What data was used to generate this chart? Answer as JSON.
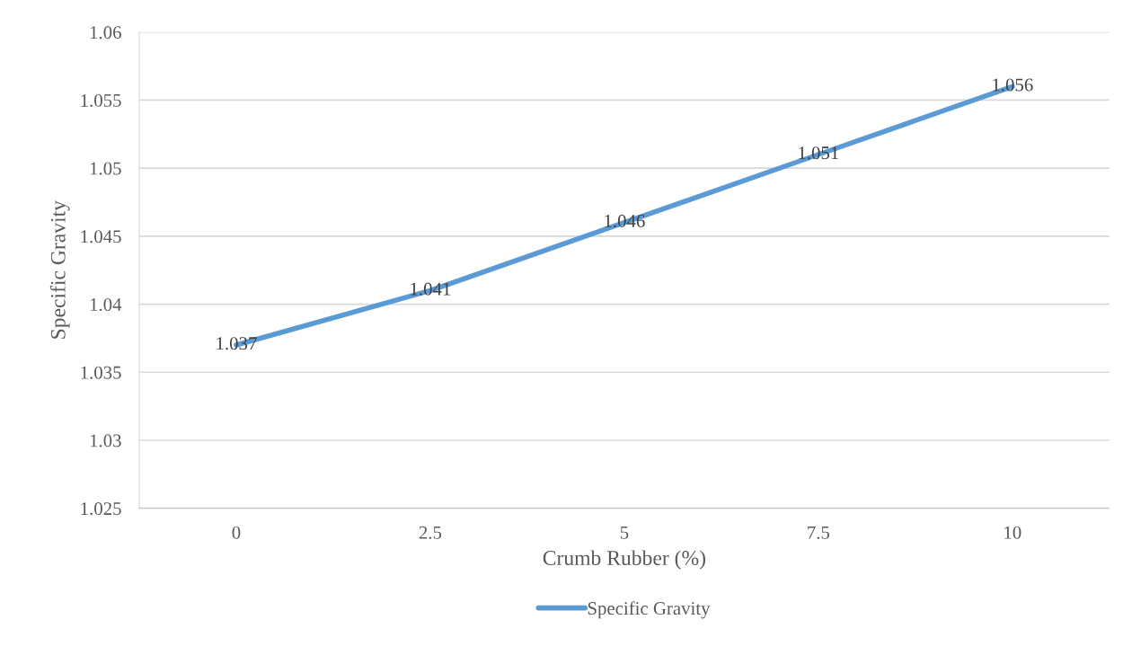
{
  "chart_data": {
    "type": "line",
    "xlabel": "Crumb Rubber (%)",
    "ylabel": "Specific Gravity",
    "categories": [
      "0",
      "2.5",
      "5",
      "7.5",
      "10"
    ],
    "series": [
      {
        "name": "Specific Gravity",
        "color": "#5b9bd5",
        "values": [
          1.037,
          1.041,
          1.046,
          1.051,
          1.056
        ]
      }
    ],
    "ylim": [
      1.025,
      1.06
    ],
    "yticks": [
      1.025,
      1.03,
      1.035,
      1.04,
      1.045,
      1.05,
      1.055,
      1.06
    ],
    "grid": "y",
    "legend": "bottom",
    "data_labels": true,
    "marker": "none",
    "line_style": "solid"
  }
}
